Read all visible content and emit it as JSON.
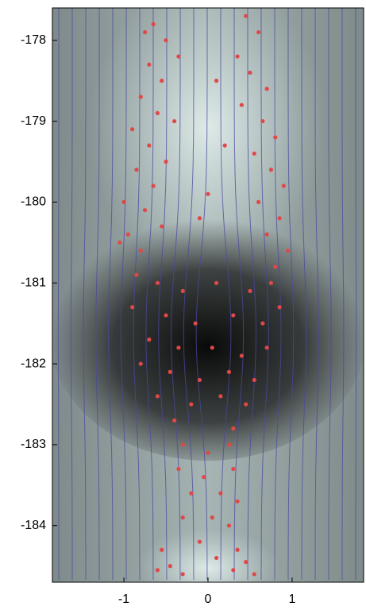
{
  "chart_data": {
    "type": "scatter",
    "color": "#e04848",
    "xlim": [
      -1.85,
      1.85
    ],
    "ylim": [
      -184.7,
      -177.6
    ],
    "xticks": [
      -1,
      0,
      1
    ],
    "yticks": [
      -178,
      -179,
      -180,
      -181,
      -182,
      -183,
      -184
    ],
    "x": [
      -0.65,
      -0.5,
      -0.7,
      -0.55,
      -0.8,
      -0.6,
      -0.9,
      -0.7,
      -0.5,
      -0.85,
      -0.65,
      -1.0,
      -0.75,
      -0.55,
      -0.95,
      -0.8,
      -1.05,
      -0.4,
      -0.35,
      -0.75,
      0.45,
      0.6,
      0.35,
      0.5,
      0.7,
      0.4,
      0.65,
      0.8,
      0.55,
      0.75,
      0.9,
      0.6,
      0.85,
      0.7,
      0.95,
      0.8,
      0.1,
      0.2,
      0.0,
      -0.1,
      -0.85,
      -0.6,
      -0.3,
      0.1,
      0.5,
      0.75,
      -0.9,
      -0.5,
      -0.15,
      0.3,
      0.65,
      0.85,
      -0.7,
      -0.35,
      0.05,
      0.4,
      0.7,
      -0.8,
      -0.45,
      -0.1,
      0.25,
      0.55,
      -0.6,
      -0.2,
      0.15,
      0.45,
      -0.4,
      0.3,
      -0.3,
      0.0,
      0.25,
      -0.35,
      -0.05,
      0.3,
      -0.2,
      0.15,
      0.35,
      -0.3,
      0.05,
      0.25,
      -0.55,
      -0.45,
      -0.3,
      -0.6,
      0.35,
      0.45,
      0.55,
      0.3,
      -0.1,
      0.1
    ],
    "values": [
      -177.8,
      -178.0,
      -178.3,
      -178.5,
      -178.7,
      -178.9,
      -179.1,
      -179.3,
      -179.5,
      -179.6,
      -179.8,
      -180.0,
      -180.1,
      -180.3,
      -180.4,
      -180.6,
      -180.5,
      -179.0,
      -178.2,
      -177.9,
      -177.7,
      -177.9,
      -178.2,
      -178.4,
      -178.6,
      -178.8,
      -179.0,
      -179.2,
      -179.4,
      -179.6,
      -179.8,
      -180.0,
      -180.2,
      -180.4,
      -180.6,
      -180.8,
      -178.5,
      -179.3,
      -179.9,
      -180.2,
      -180.9,
      -181.0,
      -181.1,
      -181.0,
      -181.1,
      -181.0,
      -181.3,
      -181.4,
      -181.5,
      -181.4,
      -181.5,
      -181.3,
      -181.7,
      -181.8,
      -181.8,
      -181.9,
      -181.8,
      -182.0,
      -182.1,
      -182.2,
      -182.1,
      -182.2,
      -182.4,
      -182.5,
      -182.4,
      -182.5,
      -182.7,
      -182.8,
      -183.0,
      -183.1,
      -183.0,
      -183.3,
      -183.4,
      -183.3,
      -183.6,
      -183.6,
      -183.7,
      -183.9,
      -183.9,
      -184.0,
      -184.3,
      -184.5,
      -184.6,
      -184.55,
      -184.3,
      -184.45,
      -184.6,
      -184.55,
      -184.2,
      -184.4
    ]
  }
}
